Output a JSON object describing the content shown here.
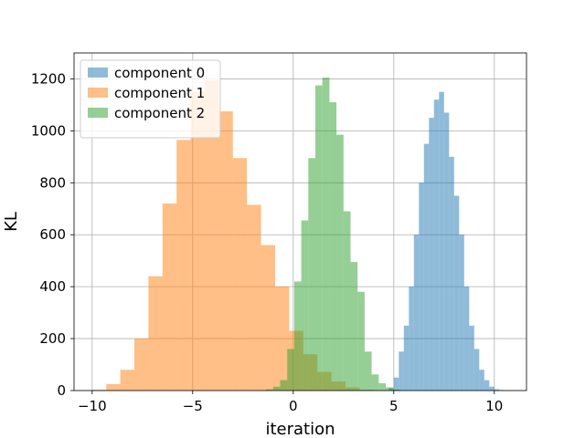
{
  "chart_data": {
    "type": "bar",
    "subtype": "histogram",
    "xlabel": "iteration",
    "ylabel": "KL",
    "xlim": [
      -10.9,
      11.6
    ],
    "ylim": [
      0,
      1300
    ],
    "xticks": [
      -10,
      -5,
      0,
      5,
      10
    ],
    "yticks": [
      0,
      200,
      400,
      600,
      800,
      1000,
      1200
    ],
    "grid": true,
    "legend_position": "top-left",
    "bar_opacity": 0.5,
    "series": [
      {
        "name": "component 0",
        "color": "#1f77b4",
        "bins": [
          [
            4.75,
            5.0,
            10
          ],
          [
            5.0,
            5.25,
            50
          ],
          [
            5.25,
            5.5,
            150
          ],
          [
            5.5,
            5.75,
            250
          ],
          [
            5.75,
            6.0,
            400
          ],
          [
            6.0,
            6.25,
            600
          ],
          [
            6.25,
            6.5,
            800
          ],
          [
            6.5,
            6.75,
            950
          ],
          [
            6.75,
            7.0,
            1050
          ],
          [
            7.0,
            7.25,
            1120
          ],
          [
            7.25,
            7.5,
            1150
          ],
          [
            7.5,
            7.75,
            1070
          ],
          [
            7.75,
            8.0,
            900
          ],
          [
            8.0,
            8.25,
            750
          ],
          [
            8.25,
            8.5,
            600
          ],
          [
            8.5,
            8.75,
            400
          ],
          [
            8.75,
            9.0,
            250
          ],
          [
            9.0,
            9.25,
            160
          ],
          [
            9.25,
            9.5,
            80
          ],
          [
            9.5,
            9.75,
            40
          ],
          [
            9.75,
            10.0,
            15
          ],
          [
            10.0,
            10.25,
            5
          ],
          [
            10.25,
            10.5,
            2
          ]
        ]
      },
      {
        "name": "component 1",
        "color": "#ff7f0e",
        "bins": [
          [
            -10.0,
            -9.3,
            3
          ],
          [
            -9.3,
            -8.6,
            25
          ],
          [
            -8.6,
            -7.9,
            80
          ],
          [
            -7.9,
            -7.2,
            200
          ],
          [
            -7.2,
            -6.5,
            440
          ],
          [
            -6.5,
            -5.8,
            720
          ],
          [
            -5.8,
            -5.1,
            965
          ],
          [
            -5.1,
            -4.4,
            1150
          ],
          [
            -4.4,
            -3.7,
            1195
          ],
          [
            -3.7,
            -3.0,
            1075
          ],
          [
            -3.0,
            -2.3,
            895
          ],
          [
            -2.3,
            -1.6,
            715
          ],
          [
            -1.6,
            -0.9,
            560
          ],
          [
            -0.9,
            -0.2,
            400
          ],
          [
            -0.2,
            0.5,
            230
          ],
          [
            0.5,
            1.2,
            140
          ],
          [
            1.2,
            1.9,
            72
          ],
          [
            1.9,
            2.6,
            35
          ],
          [
            2.6,
            3.3,
            12
          ],
          [
            3.3,
            4.0,
            3
          ]
        ]
      },
      {
        "name": "component 2",
        "color": "#2ca02c",
        "bins": [
          [
            -1.35,
            -1.0,
            5
          ],
          [
            -1.0,
            -0.65,
            15
          ],
          [
            -0.65,
            -0.3,
            40
          ],
          [
            -0.3,
            0.05,
            160
          ],
          [
            0.05,
            0.4,
            420
          ],
          [
            0.4,
            0.75,
            655
          ],
          [
            0.75,
            1.1,
            895
          ],
          [
            1.1,
            1.45,
            1175
          ],
          [
            1.45,
            1.8,
            1205
          ],
          [
            1.8,
            2.15,
            1110
          ],
          [
            2.15,
            2.5,
            985
          ],
          [
            2.5,
            2.85,
            690
          ],
          [
            2.85,
            3.2,
            495
          ],
          [
            3.2,
            3.55,
            380
          ],
          [
            3.55,
            3.9,
            150
          ],
          [
            3.9,
            4.25,
            62
          ],
          [
            4.25,
            4.6,
            28
          ],
          [
            4.6,
            4.95,
            12
          ],
          [
            4.95,
            5.3,
            4
          ]
        ]
      }
    ]
  }
}
